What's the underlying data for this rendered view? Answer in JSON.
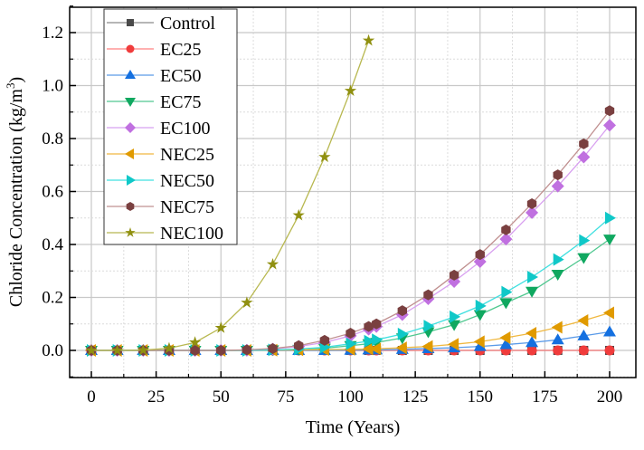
{
  "chart_data": {
    "type": "line",
    "title": "",
    "xlabel": "Time (Years)",
    "ylabel": "Chloride Concentration (kg/m³)",
    "ylabel_parts": {
      "main": "Chloride Concentration (kg/m",
      "sup": "3",
      "end": ")"
    },
    "xlim": [
      -10,
      210
    ],
    "ylim": [
      -0.1,
      1.3
    ],
    "xticks": [
      "0",
      "25",
      "50",
      "75",
      "100",
      "125",
      "150",
      "175",
      "200"
    ],
    "xtick_values": [
      0,
      25,
      50,
      75,
      100,
      125,
      150,
      175,
      200
    ],
    "yticks": [
      "0.0",
      "0.2",
      "0.4",
      "0.6",
      "0.8",
      "1.0",
      "1.2"
    ],
    "ytick_values": [
      0,
      0.2,
      0.4,
      0.6,
      0.8,
      1.0,
      1.2
    ],
    "grid": true,
    "legend_position": "top-left",
    "x": [
      0,
      10,
      20,
      30,
      40,
      50,
      60,
      70,
      80,
      90,
      100,
      107,
      110,
      120,
      130,
      140,
      150,
      160,
      170,
      180,
      190,
      200
    ],
    "series": [
      {
        "name": "Control",
        "color": "#4a4a4a",
        "line": "#8a8a8a",
        "marker": "square",
        "values": [
          0,
          0,
          0,
          0,
          0,
          0,
          0,
          0,
          0,
          0,
          0,
          0,
          0,
          0,
          0,
          0,
          0,
          0,
          0,
          0,
          0,
          0
        ]
      },
      {
        "name": "EC25",
        "color": "#f03c3c",
        "line": "#ff8080",
        "marker": "circle",
        "values": [
          0,
          0,
          0,
          0,
          0,
          0,
          0,
          0,
          0,
          0,
          0,
          0,
          0,
          0,
          0,
          0,
          0,
          0,
          0,
          0,
          0,
          0
        ]
      },
      {
        "name": "EC50",
        "color": "#1470e0",
        "line": "#5a9ae8",
        "marker": "triangle-up",
        "values": [
          0,
          0,
          0,
          0,
          0,
          0,
          0,
          0,
          0,
          0,
          0.001,
          0.002,
          0.002,
          0.004,
          0.007,
          0.01,
          0.015,
          0.022,
          0.03,
          0.04,
          0.055,
          0.07
        ]
      },
      {
        "name": "EC75",
        "color": "#10a860",
        "line": "#50c890",
        "marker": "triangle-down",
        "values": [
          0,
          0,
          0,
          0,
          0,
          0,
          0,
          0.002,
          0.004,
          0.008,
          0.018,
          0.025,
          0.03,
          0.047,
          0.07,
          0.097,
          0.135,
          0.18,
          0.223,
          0.287,
          0.35,
          0.42
        ]
      },
      {
        "name": "EC100",
        "color": "#c070e0",
        "line": "#d8a0f0",
        "marker": "diamond",
        "values": [
          0,
          0,
          0,
          0,
          0,
          0,
          0.001,
          0.005,
          0.015,
          0.03,
          0.055,
          0.08,
          0.09,
          0.135,
          0.195,
          0.26,
          0.335,
          0.42,
          0.52,
          0.62,
          0.73,
          0.85
        ]
      },
      {
        "name": "NEC25",
        "color": "#e09a00",
        "line": "#f0b840",
        "marker": "triangle-left",
        "values": [
          0,
          0,
          0,
          0,
          0,
          0,
          0,
          0.001,
          0.002,
          0.003,
          0.004,
          0.005,
          0.006,
          0.01,
          0.015,
          0.023,
          0.033,
          0.048,
          0.065,
          0.087,
          0.113,
          0.142
        ]
      },
      {
        "name": "NEC50",
        "color": "#10c8c8",
        "line": "#40e0e0",
        "marker": "triangle-right",
        "values": [
          0,
          0,
          0,
          0,
          0,
          0,
          0,
          0.002,
          0.005,
          0.012,
          0.025,
          0.035,
          0.04,
          0.062,
          0.092,
          0.127,
          0.168,
          0.22,
          0.277,
          0.343,
          0.415,
          0.5
        ]
      },
      {
        "name": "NEC75",
        "color": "#7a4040",
        "line": "#c09090",
        "marker": "hexagon",
        "values": [
          0,
          0,
          0,
          0,
          0,
          0,
          0.002,
          0.007,
          0.018,
          0.038,
          0.065,
          0.09,
          0.1,
          0.15,
          0.21,
          0.284,
          0.362,
          0.455,
          0.554,
          0.663,
          0.78,
          0.905
        ]
      },
      {
        "name": "NEC100",
        "color": "#909010",
        "line": "#b8b850",
        "marker": "star",
        "values": [
          0,
          0,
          0.001,
          0.008,
          0.03,
          0.085,
          0.18,
          0.325,
          0.51,
          0.73,
          0.98,
          1.17,
          null,
          null,
          null,
          null,
          null,
          null,
          null,
          null,
          null,
          null
        ]
      }
    ]
  }
}
